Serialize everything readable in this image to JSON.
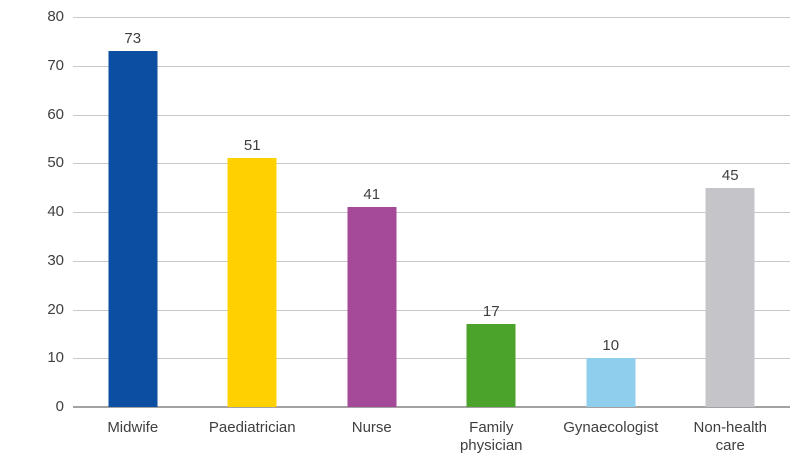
{
  "chart_data": {
    "type": "bar",
    "title": "",
    "xlabel": "",
    "ylabel": "",
    "categories": [
      "Midwife",
      "Paediatrician",
      "Nurse",
      "Family\nphysician",
      "Gynaecologist",
      "Non-health\ncare"
    ],
    "values": [
      73,
      51,
      41,
      17,
      10,
      45
    ],
    "value_labels": [
      "73",
      "51",
      "41",
      "17",
      "10",
      "45"
    ],
    "bar_colors": [
      "#0b4ea2",
      "#ffd100",
      "#a54a98",
      "#4ba32b",
      "#8fceec",
      "#c5c5c9"
    ],
    "ylim": [
      0,
      80
    ],
    "yticks": [
      0,
      10,
      20,
      30,
      40,
      50,
      60,
      70,
      80
    ],
    "grid": true,
    "legend": false,
    "gridline_color": "#c9c9c9",
    "axis_line_color": "#a2a2a2",
    "text_color": "#3f3f3e",
    "background_color": "#ffffff"
  }
}
